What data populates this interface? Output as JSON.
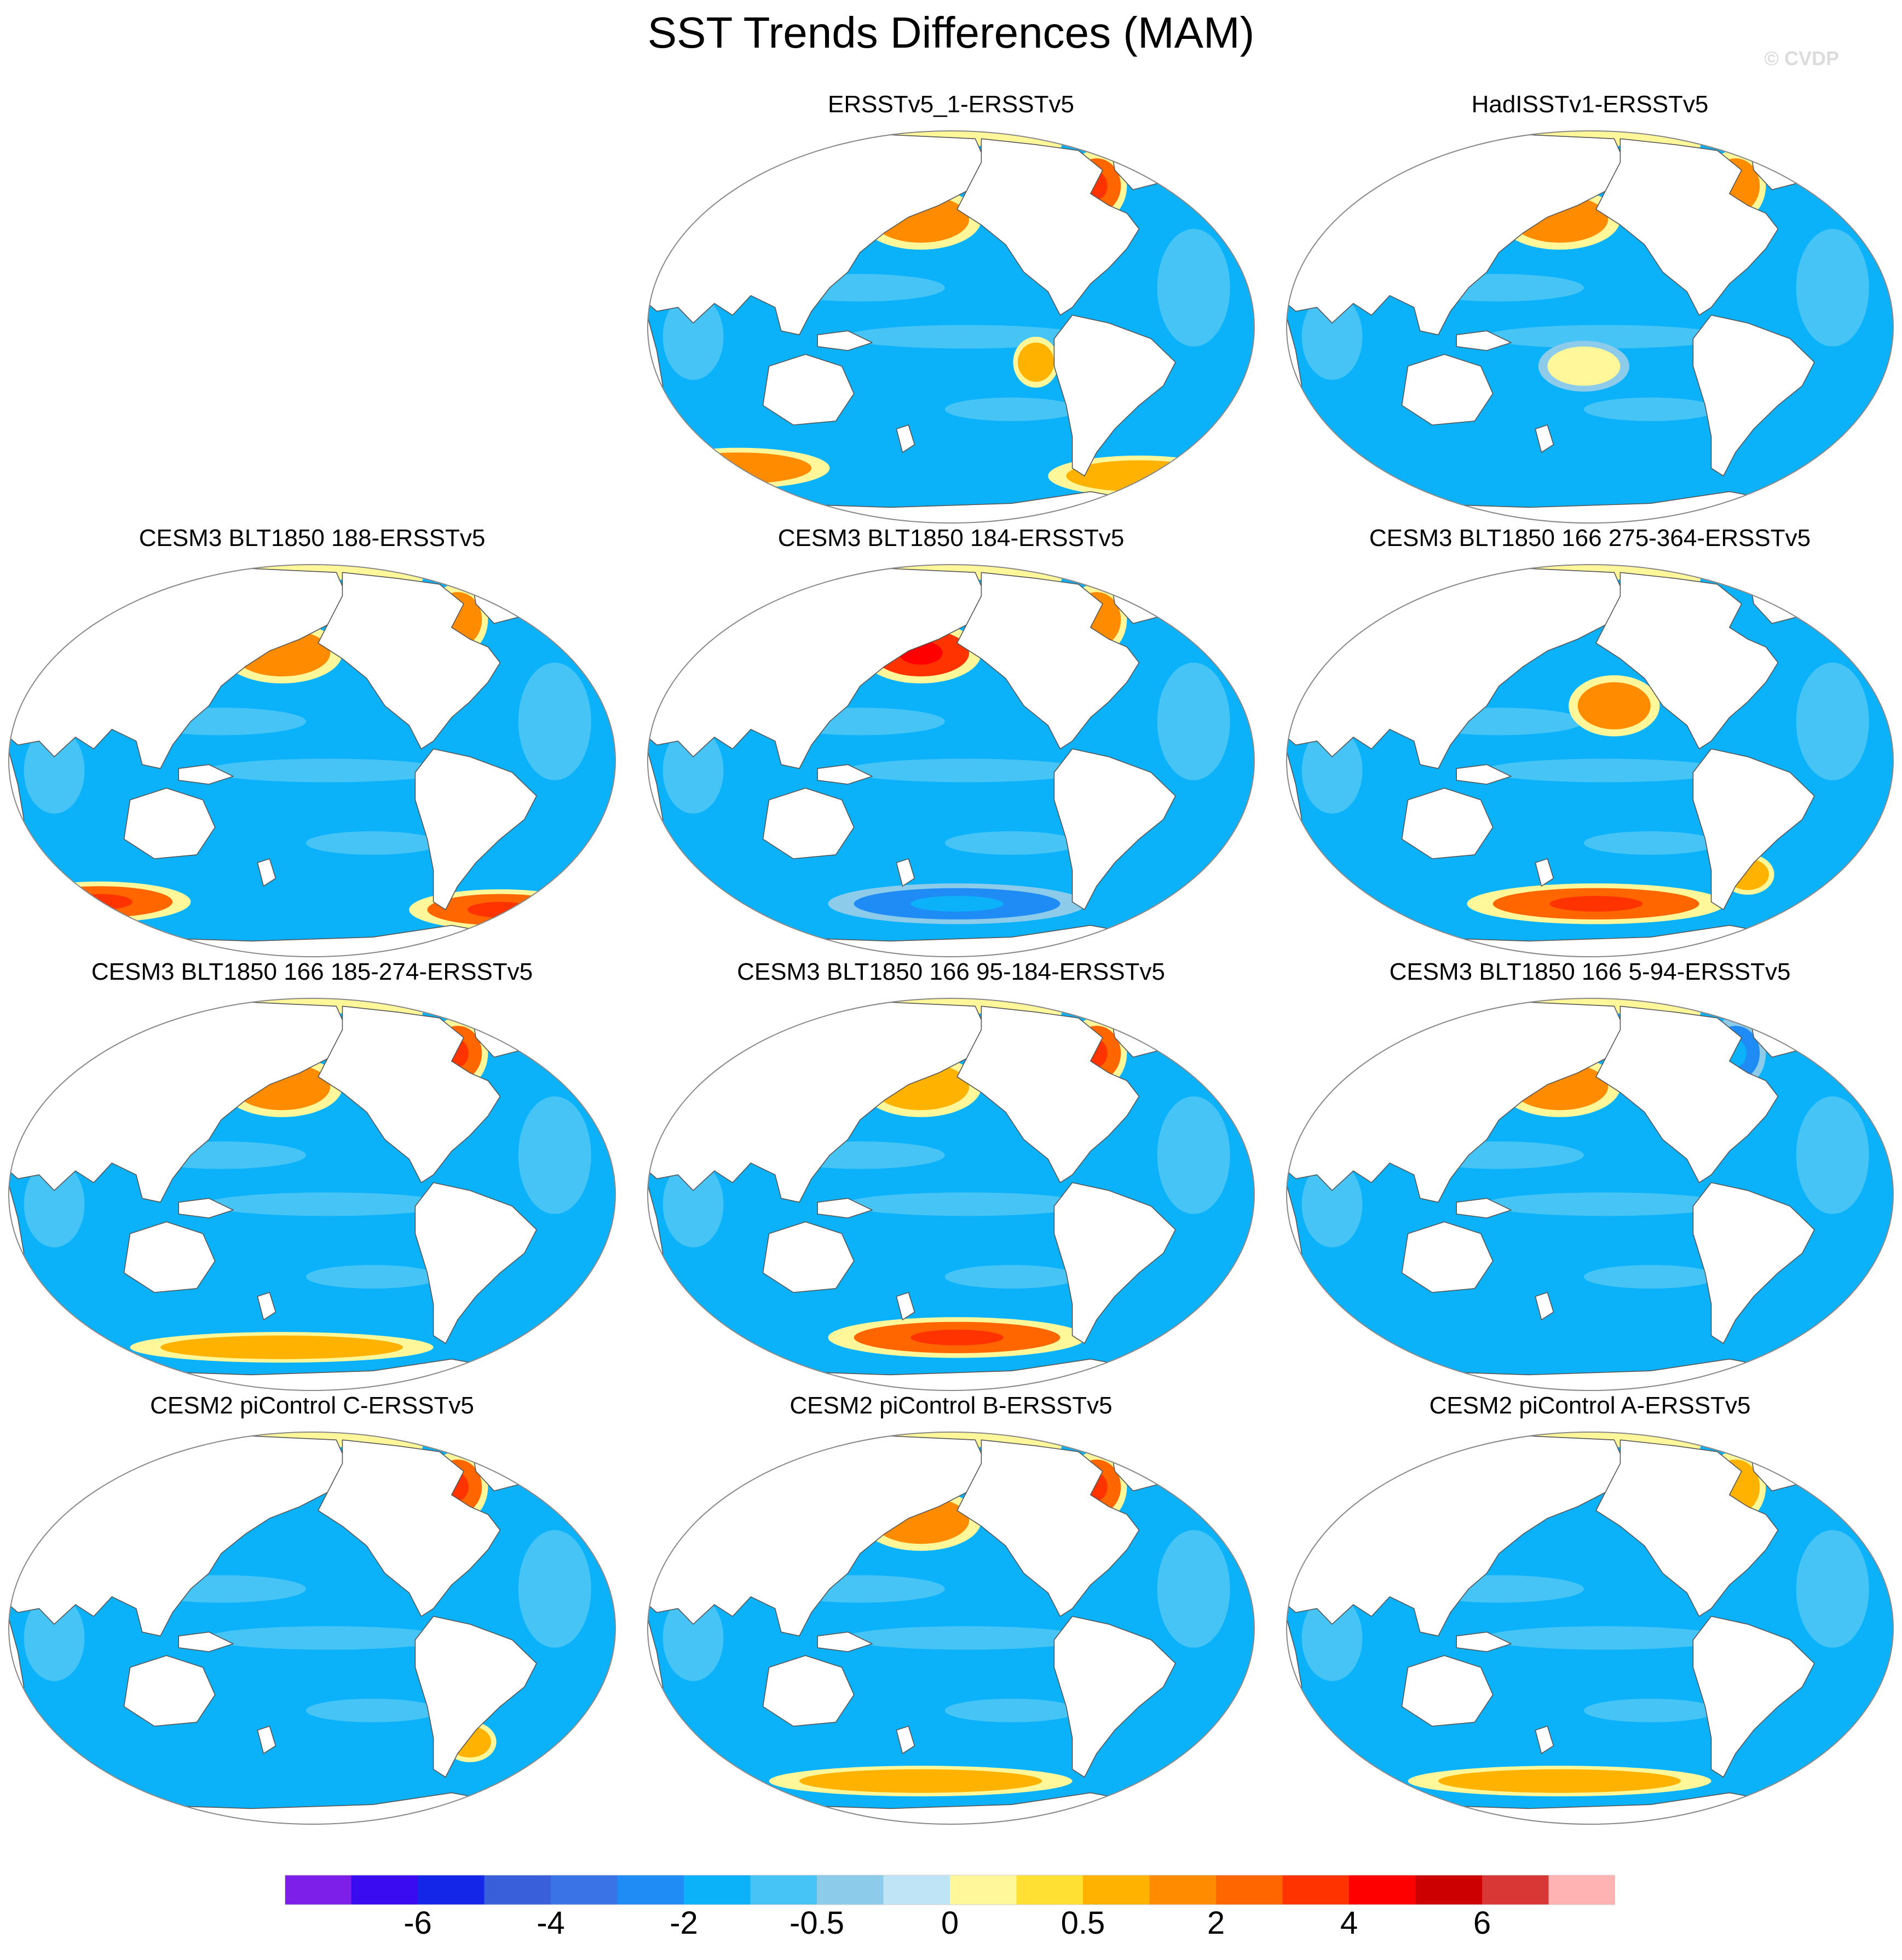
{
  "figure": {
    "title": "SST Trends Differences (MAM)",
    "watermark": "© CVDP"
  },
  "chart_data": {
    "type": "heatmap",
    "title": "SST Trends Differences (MAM)",
    "projection": "Robinson (Pacific-centered)",
    "panels": [
      {
        "title": "ERSSTv5_1-ERSSTv5",
        "features": [
          {
            "region": "North Pacific",
            "value": 1.5
          },
          {
            "region": "Labrador Sea",
            "value": 2
          },
          {
            "region": "Southern Ocean (Indian sector)",
            "value": 1
          },
          {
            "region": "Southern Ocean (S Atlantic)",
            "value": 0.5
          },
          {
            "region": "East Pacific",
            "value": 0.5
          },
          {
            "region": "Arctic margin",
            "value": 0
          }
        ]
      },
      {
        "title": "HadISSTv1-ERSSTv5",
        "features": [
          {
            "region": "North Pacific",
            "value": 1.5
          },
          {
            "region": "Labrador Sea",
            "value": 1.5
          },
          {
            "region": "Central South Pacific",
            "value": 0
          },
          {
            "region": "Arctic margin",
            "value": 0
          }
        ]
      },
      {
        "title": "CESM3 BLT1850 188-ERSSTv5",
        "features": [
          {
            "region": "North Pacific",
            "value": 1.5
          },
          {
            "region": "Labrador Sea",
            "value": 1.5
          },
          {
            "region": "Southern Ocean (Indian sector)",
            "value": 2
          },
          {
            "region": "Southern Ocean (S Atlantic)",
            "value": 2
          },
          {
            "region": "Arctic margin",
            "value": 0
          }
        ]
      },
      {
        "title": "CESM3 BLT1850 184-ERSSTv5",
        "features": [
          {
            "region": "North Pacific",
            "value": 3
          },
          {
            "region": "Labrador Sea",
            "value": 1.5
          },
          {
            "region": "Southern Ocean (Pacific sector)",
            "value": -3
          },
          {
            "region": "Arctic margin",
            "value": 0
          }
        ]
      },
      {
        "title": "CESM3 BLT1850 166 275-364-ERSSTv5",
        "features": [
          {
            "region": "Northeast Pacific",
            "value": 1
          },
          {
            "region": "Southern Ocean (Pacific sector)",
            "value": 2
          },
          {
            "region": "Southwest Atlantic",
            "value": 0.5
          },
          {
            "region": "Arctic margin",
            "value": 0
          }
        ]
      },
      {
        "title": "CESM3 BLT1850 166 185-274-ERSSTv5",
        "features": [
          {
            "region": "North Pacific",
            "value": 1.5
          },
          {
            "region": "Labrador Sea",
            "value": 2
          },
          {
            "region": "Southern Ocean",
            "value": 0.5
          },
          {
            "region": "Arctic margin",
            "value": 0
          }
        ]
      },
      {
        "title": "CESM3 BLT1850 166 95-184-ERSSTv5",
        "features": [
          {
            "region": "North Pacific",
            "value": 0.5
          },
          {
            "region": "Labrador Sea",
            "value": 2
          },
          {
            "region": "Southern Ocean (Pacific sector)",
            "value": 2
          },
          {
            "region": "Arctic margin",
            "value": 0
          }
        ]
      },
      {
        "title": "CESM3 BLT1850 166 5-94-ERSSTv5",
        "features": [
          {
            "region": "North Pacific",
            "value": 1.5
          },
          {
            "region": "Labrador Sea",
            "value": -3
          },
          {
            "region": "Arctic margin",
            "value": 0
          }
        ]
      },
      {
        "title": "CESM2 piControl C-ERSSTv5",
        "features": [
          {
            "region": "Labrador Sea",
            "value": 2
          },
          {
            "region": "Southwest Atlantic",
            "value": 0.5
          },
          {
            "region": "Arctic margin",
            "value": 0
          }
        ]
      },
      {
        "title": "CESM2 piControl B-ERSSTv5",
        "features": [
          {
            "region": "North Pacific",
            "value": 1.5
          },
          {
            "region": "Labrador Sea",
            "value": 2
          },
          {
            "region": "Southern Ocean",
            "value": 0.5
          },
          {
            "region": "Arctic margin",
            "value": 0
          }
        ]
      },
      {
        "title": "CESM2 piControl A-ERSSTv5",
        "features": [
          {
            "region": "Labrador Sea",
            "value": 0.5
          },
          {
            "region": "Southern Ocean",
            "value": 0.5
          },
          {
            "region": "Arctic margin",
            "value": 0
          }
        ]
      }
    ],
    "colorbar": {
      "tick_labels": [
        "-6",
        "-4",
        "-2",
        "-0.5",
        "0",
        "0.5",
        "2",
        "4",
        "6"
      ],
      "levels": [
        -7,
        -6,
        -5,
        -4,
        -3,
        -2,
        -1,
        -0.5,
        -0.25,
        0,
        0.25,
        0.5,
        1,
        2,
        3,
        4,
        5,
        6,
        7
      ],
      "colors": [
        "#7d1fe8",
        "#3a0af0",
        "#1426e8",
        "#3a5fdb",
        "#3a73e6",
        "#1f8cf5",
        "#0bb2fa",
        "#45c4f5",
        "#8ccbea",
        "#bfe4f5",
        "#fff799",
        "#ffe033",
        "#ffb300",
        "#ff8c00",
        "#ff6600",
        "#ff3300",
        "#ff0000",
        "#cc0000",
        "#d93636",
        "#ffb3b3"
      ]
    }
  }
}
